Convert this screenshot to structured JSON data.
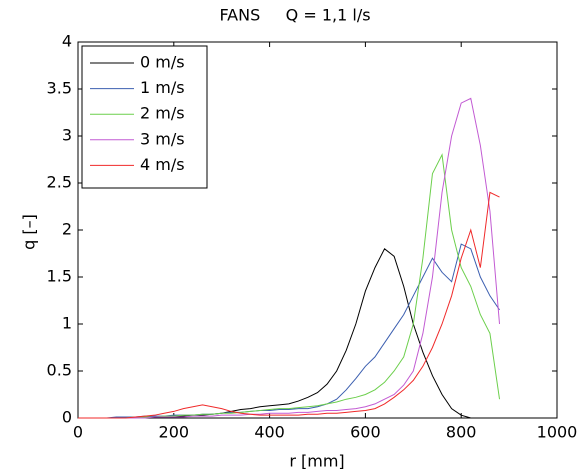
{
  "chart_data": {
    "type": "line",
    "title": "FANS     Q = 1,1 l/s",
    "x_label": "r [mm]",
    "y_label": "q [–]",
    "x": [
      0,
      20,
      40,
      60,
      80,
      100,
      120,
      140,
      160,
      180,
      200,
      220,
      240,
      260,
      280,
      300,
      320,
      340,
      360,
      380,
      400,
      420,
      440,
      460,
      480,
      500,
      520,
      540,
      560,
      580,
      600,
      620,
      640,
      660,
      680,
      700,
      720,
      740,
      760,
      780,
      800,
      820,
      840,
      860,
      880
    ],
    "series": [
      {
        "name": "0 m/s",
        "color": "#000000",
        "values": [
          0,
          0,
          0,
          0,
          0,
          0,
          0,
          0,
          0,
          0.01,
          0.02,
          0.02,
          0.03,
          0.03,
          0.04,
          0.05,
          0.07,
          0.09,
          0.1,
          0.12,
          0.13,
          0.14,
          0.15,
          0.18,
          0.22,
          0.27,
          0.36,
          0.5,
          0.72,
          1.0,
          1.35,
          1.6,
          1.8,
          1.72,
          1.4,
          1.0,
          0.7,
          0.45,
          0.25,
          0.1,
          0.03,
          0,
          null,
          null,
          null
        ]
      },
      {
        "name": "1 m/s",
        "color": "#3c5fb0",
        "values": [
          0,
          0,
          0,
          0,
          0.01,
          0.01,
          0.01,
          0.02,
          0.02,
          0.02,
          0.03,
          0.03,
          0.03,
          0.04,
          0.04,
          0.05,
          0.06,
          0.06,
          0.07,
          0.08,
          0.08,
          0.09,
          0.09,
          0.1,
          0.1,
          0.12,
          0.15,
          0.2,
          0.3,
          0.42,
          0.55,
          0.65,
          0.8,
          0.95,
          1.1,
          1.3,
          1.5,
          1.7,
          1.55,
          1.45,
          1.85,
          1.8,
          1.5,
          1.3,
          1.15
        ]
      },
      {
        "name": "2 m/s",
        "color": "#6ccf4c",
        "values": [
          0,
          0,
          0,
          0,
          0,
          0,
          0.01,
          0.01,
          0.01,
          0.02,
          0.02,
          0.03,
          0.03,
          0.04,
          0.04,
          0.05,
          0.05,
          0.06,
          0.07,
          0.08,
          0.09,
          0.1,
          0.1,
          0.11,
          0.12,
          0.13,
          0.15,
          0.17,
          0.2,
          0.22,
          0.25,
          0.3,
          0.38,
          0.5,
          0.65,
          1.0,
          1.7,
          2.6,
          2.8,
          2.0,
          1.6,
          1.4,
          1.1,
          0.9,
          0.2
        ]
      },
      {
        "name": "3 m/s",
        "color": "#c25bd3",
        "values": [
          0,
          0,
          0,
          0,
          0,
          0,
          0,
          0,
          0.01,
          0.01,
          0.01,
          0.01,
          0.02,
          0.02,
          0.02,
          0.03,
          0.03,
          0.03,
          0.04,
          0.04,
          0.05,
          0.05,
          0.05,
          0.06,
          0.06,
          0.07,
          0.08,
          0.08,
          0.09,
          0.1,
          0.12,
          0.15,
          0.2,
          0.25,
          0.35,
          0.5,
          0.9,
          1.5,
          2.4,
          3.0,
          3.35,
          3.4,
          2.9,
          2.2,
          1.0
        ]
      },
      {
        "name": "4 m/s",
        "color": "#f02a2a",
        "values": [
          0,
          0,
          0,
          0,
          0,
          0,
          0.01,
          0.02,
          0.03,
          0.05,
          0.07,
          0.1,
          0.12,
          0.14,
          0.12,
          0.1,
          0.07,
          0.05,
          0.04,
          0.03,
          0.03,
          0.03,
          0.03,
          0.03,
          0.04,
          0.04,
          0.05,
          0.05,
          0.06,
          0.07,
          0.08,
          0.1,
          0.15,
          0.22,
          0.3,
          0.4,
          0.55,
          0.75,
          1.0,
          1.3,
          1.7,
          2.0,
          1.6,
          2.4,
          2.35
        ]
      }
    ],
    "xlim": [
      0,
      1000
    ],
    "ylim": [
      0,
      4
    ],
    "xticks": [
      0,
      200,
      400,
      600,
      800,
      1000
    ],
    "yticks": [
      0,
      0.5,
      1,
      1.5,
      2,
      2.5,
      3,
      3.5,
      4
    ],
    "legend": "upper left",
    "grid": false
  }
}
